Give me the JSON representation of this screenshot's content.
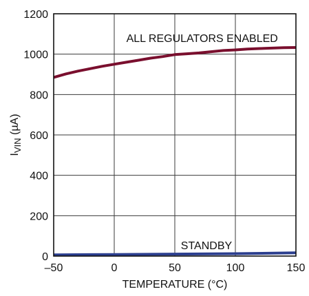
{
  "chart_data": {
    "type": "line",
    "title": "",
    "xlabel": "TEMPERATURE (°C)",
    "ylabel": {
      "main": "I",
      "subscript": "VIN",
      "unit": " (µA)"
    },
    "xlim": [
      -50,
      150
    ],
    "ylim": [
      0,
      1200
    ],
    "xticks": [
      -50,
      0,
      50,
      100,
      150
    ],
    "yticks": [
      0,
      200,
      400,
      600,
      800,
      1000,
      1200
    ],
    "xtick_labels": [
      "–50",
      "0",
      "50",
      "100",
      "150"
    ],
    "ytick_labels": [
      "0",
      "200",
      "400",
      "600",
      "800",
      "1000",
      "1200"
    ],
    "grid": true,
    "series": [
      {
        "name": "ALL REGULATORS ENABLED",
        "color": "#7a0f2e",
        "x": [
          -50,
          -40,
          -30,
          -20,
          -10,
          0,
          10,
          20,
          30,
          40,
          50,
          60,
          70,
          80,
          90,
          100,
          110,
          120,
          130,
          140,
          150
        ],
        "y": [
          885,
          902,
          916,
          928,
          940,
          950,
          960,
          970,
          980,
          988,
          998,
          1002,
          1006,
          1012,
          1018,
          1021,
          1025,
          1028,
          1030,
          1032,
          1033
        ]
      },
      {
        "name": "STANDBY",
        "color": "#2c3f8f",
        "x": [
          -50,
          0,
          50,
          100,
          150
        ],
        "y": [
          6,
          8,
          10,
          12,
          16
        ]
      }
    ],
    "annotations": [
      {
        "text": "ALL REGULATORS ENABLED",
        "x": 10,
        "y": 1080
      },
      {
        "text": "STANDBY",
        "x": 55,
        "y": 55
      }
    ]
  }
}
